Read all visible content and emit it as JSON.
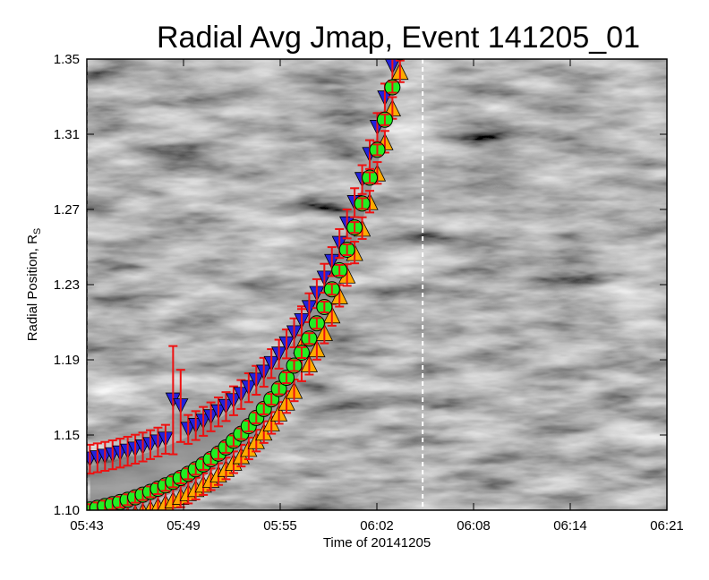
{
  "chart_data": {
    "type": "scatter",
    "title": "Radial Avg Jmap, Event 141205_01",
    "xlabel": "Time of 20141205",
    "ylabel": "Radial Position, R",
    "ylabel_subscript": "S",
    "x_ticks": [
      "05:43",
      "05:49",
      "05:55",
      "06:02",
      "06:08",
      "06:14",
      "06:21"
    ],
    "y_ticks": [
      "1.10",
      "1.15",
      "1.19",
      "1.23",
      "1.27",
      "1.31",
      "1.35"
    ],
    "xlim_minutes_after_0543": [
      0,
      38
    ],
    "ylim": [
      1.1,
      1.35
    ],
    "background": "grayscale J-map image",
    "vertical_markers_minutes_after_0543": [
      0,
      22
    ],
    "colors": {
      "upper": "#2222dd",
      "middle": "#22ee22",
      "lower": "#ffaa00",
      "errorbar": "#ee1111",
      "band": "#888888"
    },
    "series": [
      {
        "name": "",
        "marker": "triangle-down",
        "color": "#2222dd",
        "curve": "upper"
      },
      {
        "name": "",
        "marker": "circle",
        "color": "#22ee22",
        "curve": "middle"
      },
      {
        "name": "",
        "marker": "triangle-up",
        "color": "#ffaa00",
        "curve": "lower"
      }
    ]
  }
}
